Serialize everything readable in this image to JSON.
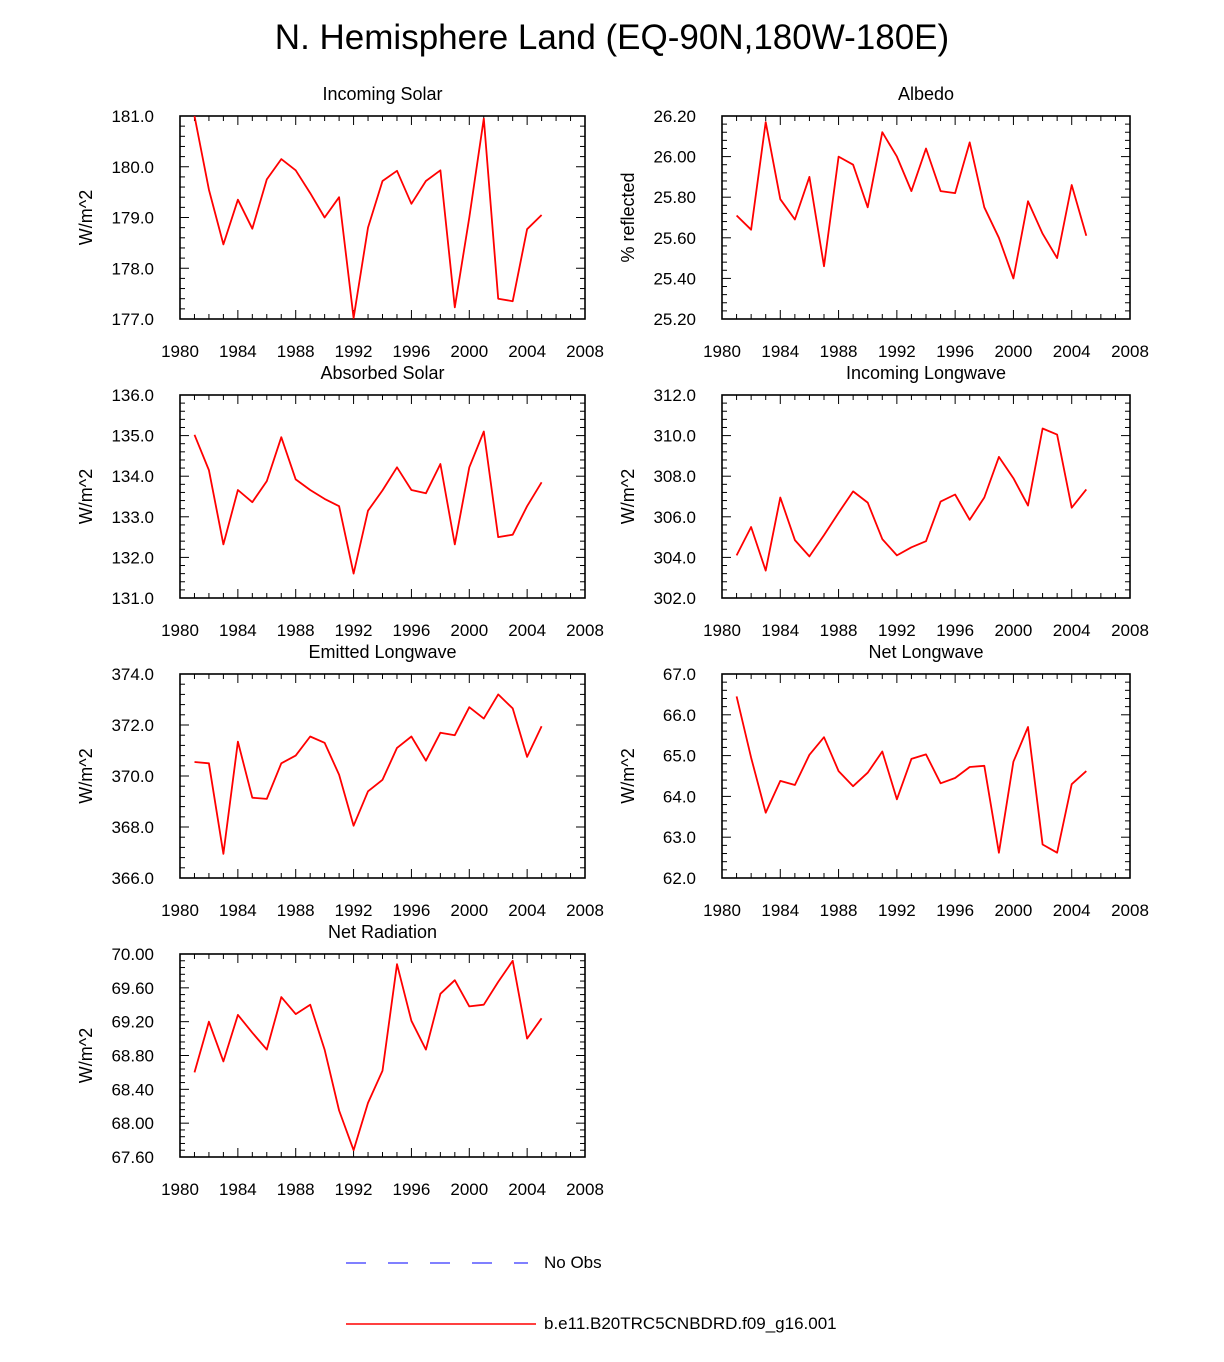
{
  "title": "N. Hemisphere Land (EQ-90N,180W-180E)",
  "colors": {
    "model": "#ff0000",
    "obs": "#0000ff",
    "axis": "#000000"
  },
  "legend": {
    "obs_label": "No Obs",
    "model_label": "b.e11.B20TRC5CNBDRD.f09_g16.001"
  },
  "chart_data": [
    {
      "type": "line",
      "title": "Incoming Solar",
      "ylabel": "W/m^2",
      "xlabel": "",
      "xlim": [
        1980,
        2008
      ],
      "ylim": [
        177.0,
        181.0
      ],
      "xticks": [
        "1980",
        "1984",
        "1988",
        "1992",
        "1996",
        "2000",
        "2004",
        "2008"
      ],
      "yticks": [
        "177.0",
        "178.0",
        "179.0",
        "180.0",
        "181.0"
      ],
      "series": [
        {
          "name": "b.e11.B20TRC5CNBDRD.f09_g16.001",
          "x": [
            1981,
            1982,
            1983,
            1984,
            1985,
            1986,
            1987,
            1988,
            1989,
            1990,
            1991,
            1992,
            1993,
            1994,
            1995,
            1996,
            1997,
            1998,
            1999,
            2000,
            2001,
            2002,
            2003,
            2004,
            2005
          ],
          "values": [
            181.0,
            179.55,
            178.47,
            179.35,
            178.78,
            179.75,
            180.15,
            179.93,
            179.48,
            179.0,
            179.4,
            177.02,
            178.8,
            179.72,
            179.92,
            179.27,
            179.72,
            179.93,
            177.23,
            179.0,
            180.95,
            177.4,
            177.35,
            178.77,
            179.05
          ]
        }
      ]
    },
    {
      "type": "line",
      "title": "Albedo",
      "ylabel": "% reflected",
      "xlabel": "",
      "xlim": [
        1980,
        2008
      ],
      "ylim": [
        25.2,
        26.2
      ],
      "xticks": [
        "1980",
        "1984",
        "1988",
        "1992",
        "1996",
        "2000",
        "2004",
        "2008"
      ],
      "yticks": [
        "25.20",
        "25.40",
        "25.60",
        "25.80",
        "26.00",
        "26.20"
      ],
      "series": [
        {
          "name": "b.e11.B20TRC5CNBDRD.f09_g16.001",
          "x": [
            1981,
            1982,
            1983,
            1984,
            1985,
            1986,
            1987,
            1988,
            1989,
            1990,
            1991,
            1992,
            1993,
            1994,
            1995,
            1996,
            1997,
            1998,
            1999,
            2000,
            2001,
            2002,
            2003,
            2004,
            2005
          ],
          "values": [
            25.71,
            25.64,
            26.17,
            25.79,
            25.69,
            25.9,
            25.46,
            26.0,
            25.96,
            25.75,
            26.12,
            26.0,
            25.83,
            26.04,
            25.83,
            25.82,
            26.07,
            25.75,
            25.6,
            25.4,
            25.78,
            25.62,
            25.5,
            25.86,
            25.61
          ]
        }
      ]
    },
    {
      "type": "line",
      "title": "Absorbed Solar",
      "ylabel": "W/m^2",
      "xlabel": "",
      "xlim": [
        1980,
        2008
      ],
      "ylim": [
        131.0,
        136.0
      ],
      "xticks": [
        "1980",
        "1984",
        "1988",
        "1992",
        "1996",
        "2000",
        "2004",
        "2008"
      ],
      "yticks": [
        "131.0",
        "132.0",
        "133.0",
        "134.0",
        "135.0",
        "136.0"
      ],
      "series": [
        {
          "name": "b.e11.B20TRC5CNBDRD.f09_g16.001",
          "x": [
            1981,
            1982,
            1983,
            1984,
            1985,
            1986,
            1987,
            1988,
            1989,
            1990,
            1991,
            1992,
            1993,
            1994,
            1995,
            1996,
            1997,
            1998,
            1999,
            2000,
            2001,
            2002,
            2003,
            2004,
            2005
          ],
          "values": [
            135.02,
            134.15,
            132.32,
            133.66,
            133.36,
            133.88,
            134.96,
            133.92,
            133.66,
            133.44,
            133.26,
            131.6,
            133.15,
            133.65,
            134.22,
            133.66,
            133.58,
            134.3,
            132.32,
            134.22,
            135.1,
            132.5,
            132.56,
            133.26,
            133.85
          ]
        }
      ]
    },
    {
      "type": "line",
      "title": "Incoming Longwave",
      "ylabel": "W/m^2",
      "xlabel": "",
      "xlim": [
        1980,
        2008
      ],
      "ylim": [
        302.0,
        312.0
      ],
      "xticks": [
        "1980",
        "1984",
        "1988",
        "1992",
        "1996",
        "2000",
        "2004",
        "2008"
      ],
      "yticks": [
        "302.0",
        "304.0",
        "306.0",
        "308.0",
        "310.0",
        "312.0"
      ],
      "series": [
        {
          "name": "b.e11.B20TRC5CNBDRD.f09_g16.001",
          "x": [
            1981,
            1982,
            1983,
            1984,
            1985,
            1986,
            1987,
            1988,
            1989,
            1990,
            1991,
            1992,
            1993,
            1994,
            1995,
            1996,
            1997,
            1998,
            1999,
            2000,
            2001,
            2002,
            2003,
            2004,
            2005
          ],
          "values": [
            304.1,
            305.5,
            303.35,
            306.95,
            304.85,
            304.05,
            305.1,
            306.2,
            307.25,
            306.7,
            304.9,
            304.1,
            304.5,
            304.8,
            306.75,
            307.1,
            305.85,
            306.95,
            308.95,
            307.9,
            306.55,
            310.35,
            310.05,
            306.45,
            307.35
          ]
        }
      ]
    },
    {
      "type": "line",
      "title": "Emitted Longwave",
      "ylabel": "W/m^2",
      "xlabel": "",
      "xlim": [
        1980,
        2008
      ],
      "ylim": [
        366.0,
        374.0
      ],
      "xticks": [
        "1980",
        "1984",
        "1988",
        "1992",
        "1996",
        "2000",
        "2004",
        "2008"
      ],
      "yticks": [
        "366.0",
        "368.0",
        "370.0",
        "372.0",
        "374.0"
      ],
      "series": [
        {
          "name": "b.e11.B20TRC5CNBDRD.f09_g16.001",
          "x": [
            1981,
            1982,
            1983,
            1984,
            1985,
            1986,
            1987,
            1988,
            1989,
            1990,
            1991,
            1992,
            1993,
            1994,
            1995,
            1996,
            1997,
            1998,
            1999,
            2000,
            2001,
            2002,
            2003,
            2004,
            2005
          ],
          "values": [
            370.55,
            370.5,
            366.95,
            371.35,
            369.15,
            369.1,
            370.5,
            370.8,
            371.55,
            371.3,
            370.05,
            368.05,
            369.4,
            369.85,
            371.1,
            371.55,
            370.6,
            371.7,
            371.6,
            372.7,
            372.25,
            373.2,
            372.65,
            370.75,
            371.95
          ]
        }
      ]
    },
    {
      "type": "line",
      "title": "Net Longwave",
      "ylabel": "W/m^2",
      "xlabel": "",
      "xlim": [
        1980,
        2008
      ],
      "ylim": [
        62.0,
        67.0
      ],
      "xticks": [
        "1980",
        "1984",
        "1988",
        "1992",
        "1996",
        "2000",
        "2004",
        "2008"
      ],
      "yticks": [
        "62.0",
        "63.0",
        "64.0",
        "65.0",
        "66.0",
        "67.0"
      ],
      "series": [
        {
          "name": "b.e11.B20TRC5CNBDRD.f09_g16.001",
          "x": [
            1981,
            1982,
            1983,
            1984,
            1985,
            1986,
            1987,
            1988,
            1989,
            1990,
            1991,
            1992,
            1993,
            1994,
            1995,
            1996,
            1997,
            1998,
            1999,
            2000,
            2001,
            2002,
            2003,
            2004,
            2005
          ],
          "values": [
            66.45,
            64.95,
            63.6,
            64.38,
            64.28,
            65.02,
            65.45,
            64.62,
            64.25,
            64.58,
            65.1,
            63.93,
            64.92,
            65.03,
            64.32,
            64.45,
            64.72,
            64.75,
            62.62,
            64.85,
            65.7,
            62.82,
            62.62,
            64.3,
            64.62
          ]
        }
      ]
    },
    {
      "type": "line",
      "title": "Net Radiation",
      "ylabel": "W/m^2",
      "xlabel": "",
      "xlim": [
        1980,
        2008
      ],
      "ylim": [
        67.6,
        70.0
      ],
      "xticks": [
        "1980",
        "1984",
        "1988",
        "1992",
        "1996",
        "2000",
        "2004",
        "2008"
      ],
      "yticks": [
        "67.60",
        "68.00",
        "68.40",
        "68.80",
        "69.20",
        "69.60",
        "70.00"
      ],
      "series": [
        {
          "name": "b.e11.B20TRC5CNBDRD.f09_g16.001",
          "x": [
            1981,
            1982,
            1983,
            1984,
            1985,
            1986,
            1987,
            1988,
            1989,
            1990,
            1991,
            1992,
            1993,
            1994,
            1995,
            1996,
            1997,
            1998,
            1999,
            2000,
            2001,
            2002,
            2003,
            2004,
            2005
          ],
          "values": [
            68.6,
            69.2,
            68.73,
            69.28,
            69.07,
            68.87,
            69.49,
            69.29,
            69.4,
            68.87,
            68.15,
            67.68,
            68.24,
            68.62,
            69.88,
            69.21,
            68.87,
            69.53,
            69.69,
            69.38,
            69.4,
            69.67,
            69.92,
            69.0,
            69.24
          ]
        }
      ]
    }
  ]
}
